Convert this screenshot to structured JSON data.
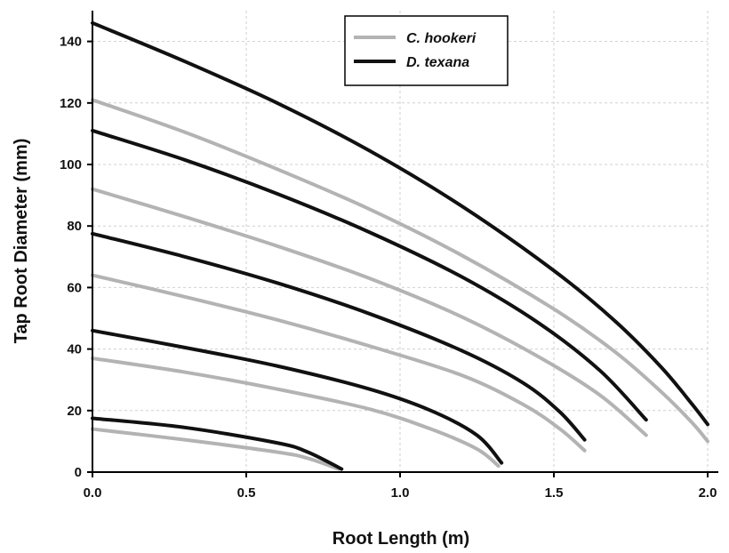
{
  "chart_data": {
    "type": "line",
    "xlabel": "Root Length (m)",
    "ylabel": "Tap Root Diameter (mm)",
    "xlim": [
      0,
      2.0
    ],
    "ylim": [
      0,
      150
    ],
    "x_ticks": [
      "0.0",
      "0.5",
      "1.0",
      "1.5",
      "2.0"
    ],
    "y_ticks": [
      "0",
      "20",
      "40",
      "60",
      "80",
      "100",
      "120",
      "140"
    ],
    "grid": true,
    "legend_position": "top-center",
    "legend": [
      {
        "name": "C. hookeri",
        "color": "#b3b3b3"
      },
      {
        "name": "D. texana",
        "color": "#111111"
      }
    ],
    "series": [
      {
        "name": "C. hookeri",
        "color": "#b3b3b3",
        "points": [
          [
            0,
            14
          ],
          [
            0.3,
            10.5
          ],
          [
            0.6,
            6.5
          ],
          [
            0.7,
            4.5
          ],
          [
            0.8,
            1
          ]
        ]
      },
      {
        "name": "D. texana",
        "color": "#111111",
        "points": [
          [
            0,
            17.5
          ],
          [
            0.3,
            14.5
          ],
          [
            0.6,
            9.5
          ],
          [
            0.7,
            6.5
          ],
          [
            0.81,
            1
          ]
        ]
      },
      {
        "name": "C. hookeri",
        "color": "#b3b3b3",
        "points": [
          [
            0,
            37
          ],
          [
            0.3,
            32.5
          ],
          [
            0.6,
            27
          ],
          [
            0.9,
            20.5
          ],
          [
            1.1,
            14
          ],
          [
            1.25,
            7.5
          ],
          [
            1.32,
            2
          ]
        ]
      },
      {
        "name": "D. texana",
        "color": "#111111",
        "points": [
          [
            0,
            46
          ],
          [
            0.3,
            40.5
          ],
          [
            0.6,
            34.5
          ],
          [
            0.9,
            27
          ],
          [
            1.1,
            20
          ],
          [
            1.25,
            12
          ],
          [
            1.33,
            3
          ]
        ]
      },
      {
        "name": "C. hookeri",
        "color": "#b3b3b3",
        "points": [
          [
            0,
            64
          ],
          [
            0.3,
            57
          ],
          [
            0.6,
            49.5
          ],
          [
            0.9,
            41
          ],
          [
            1.2,
            31.5
          ],
          [
            1.4,
            22
          ],
          [
            1.52,
            14
          ],
          [
            1.6,
            7
          ]
        ]
      },
      {
        "name": "D. texana",
        "color": "#111111",
        "points": [
          [
            0,
            77.5
          ],
          [
            0.3,
            70
          ],
          [
            0.6,
            61.5
          ],
          [
            0.9,
            51.5
          ],
          [
            1.2,
            39.5
          ],
          [
            1.4,
            29
          ],
          [
            1.52,
            19.5
          ],
          [
            1.6,
            10.5
          ]
        ]
      },
      {
        "name": "C. hookeri",
        "color": "#b3b3b3",
        "points": [
          [
            0,
            92
          ],
          [
            0.3,
            83
          ],
          [
            0.6,
            73.5
          ],
          [
            0.9,
            63
          ],
          [
            1.2,
            50.5
          ],
          [
            1.45,
            37.5
          ],
          [
            1.65,
            25
          ],
          [
            1.8,
            12
          ]
        ]
      },
      {
        "name": "D. texana",
        "color": "#111111",
        "points": [
          [
            0,
            111
          ],
          [
            0.3,
            101.5
          ],
          [
            0.6,
            90.5
          ],
          [
            0.9,
            78
          ],
          [
            1.2,
            63.5
          ],
          [
            1.45,
            48.5
          ],
          [
            1.65,
            33
          ],
          [
            1.8,
            17
          ]
        ]
      },
      {
        "name": "C. hookeri",
        "color": "#b3b3b3",
        "points": [
          [
            0,
            121
          ],
          [
            0.3,
            110.5
          ],
          [
            0.6,
            98.5
          ],
          [
            0.9,
            85.5
          ],
          [
            1.2,
            70.5
          ],
          [
            1.5,
            53
          ],
          [
            1.7,
            39
          ],
          [
            1.85,
            26
          ],
          [
            1.95,
            16
          ],
          [
            2.0,
            10
          ]
        ]
      },
      {
        "name": "D. texana",
        "color": "#111111",
        "points": [
          [
            0,
            146
          ],
          [
            0.3,
            133.5
          ],
          [
            0.6,
            120
          ],
          [
            0.9,
            104.5
          ],
          [
            1.2,
            86.5
          ],
          [
            1.5,
            65.5
          ],
          [
            1.7,
            49
          ],
          [
            1.85,
            34
          ],
          [
            1.95,
            22
          ],
          [
            2.0,
            15.5
          ]
        ]
      }
    ]
  }
}
